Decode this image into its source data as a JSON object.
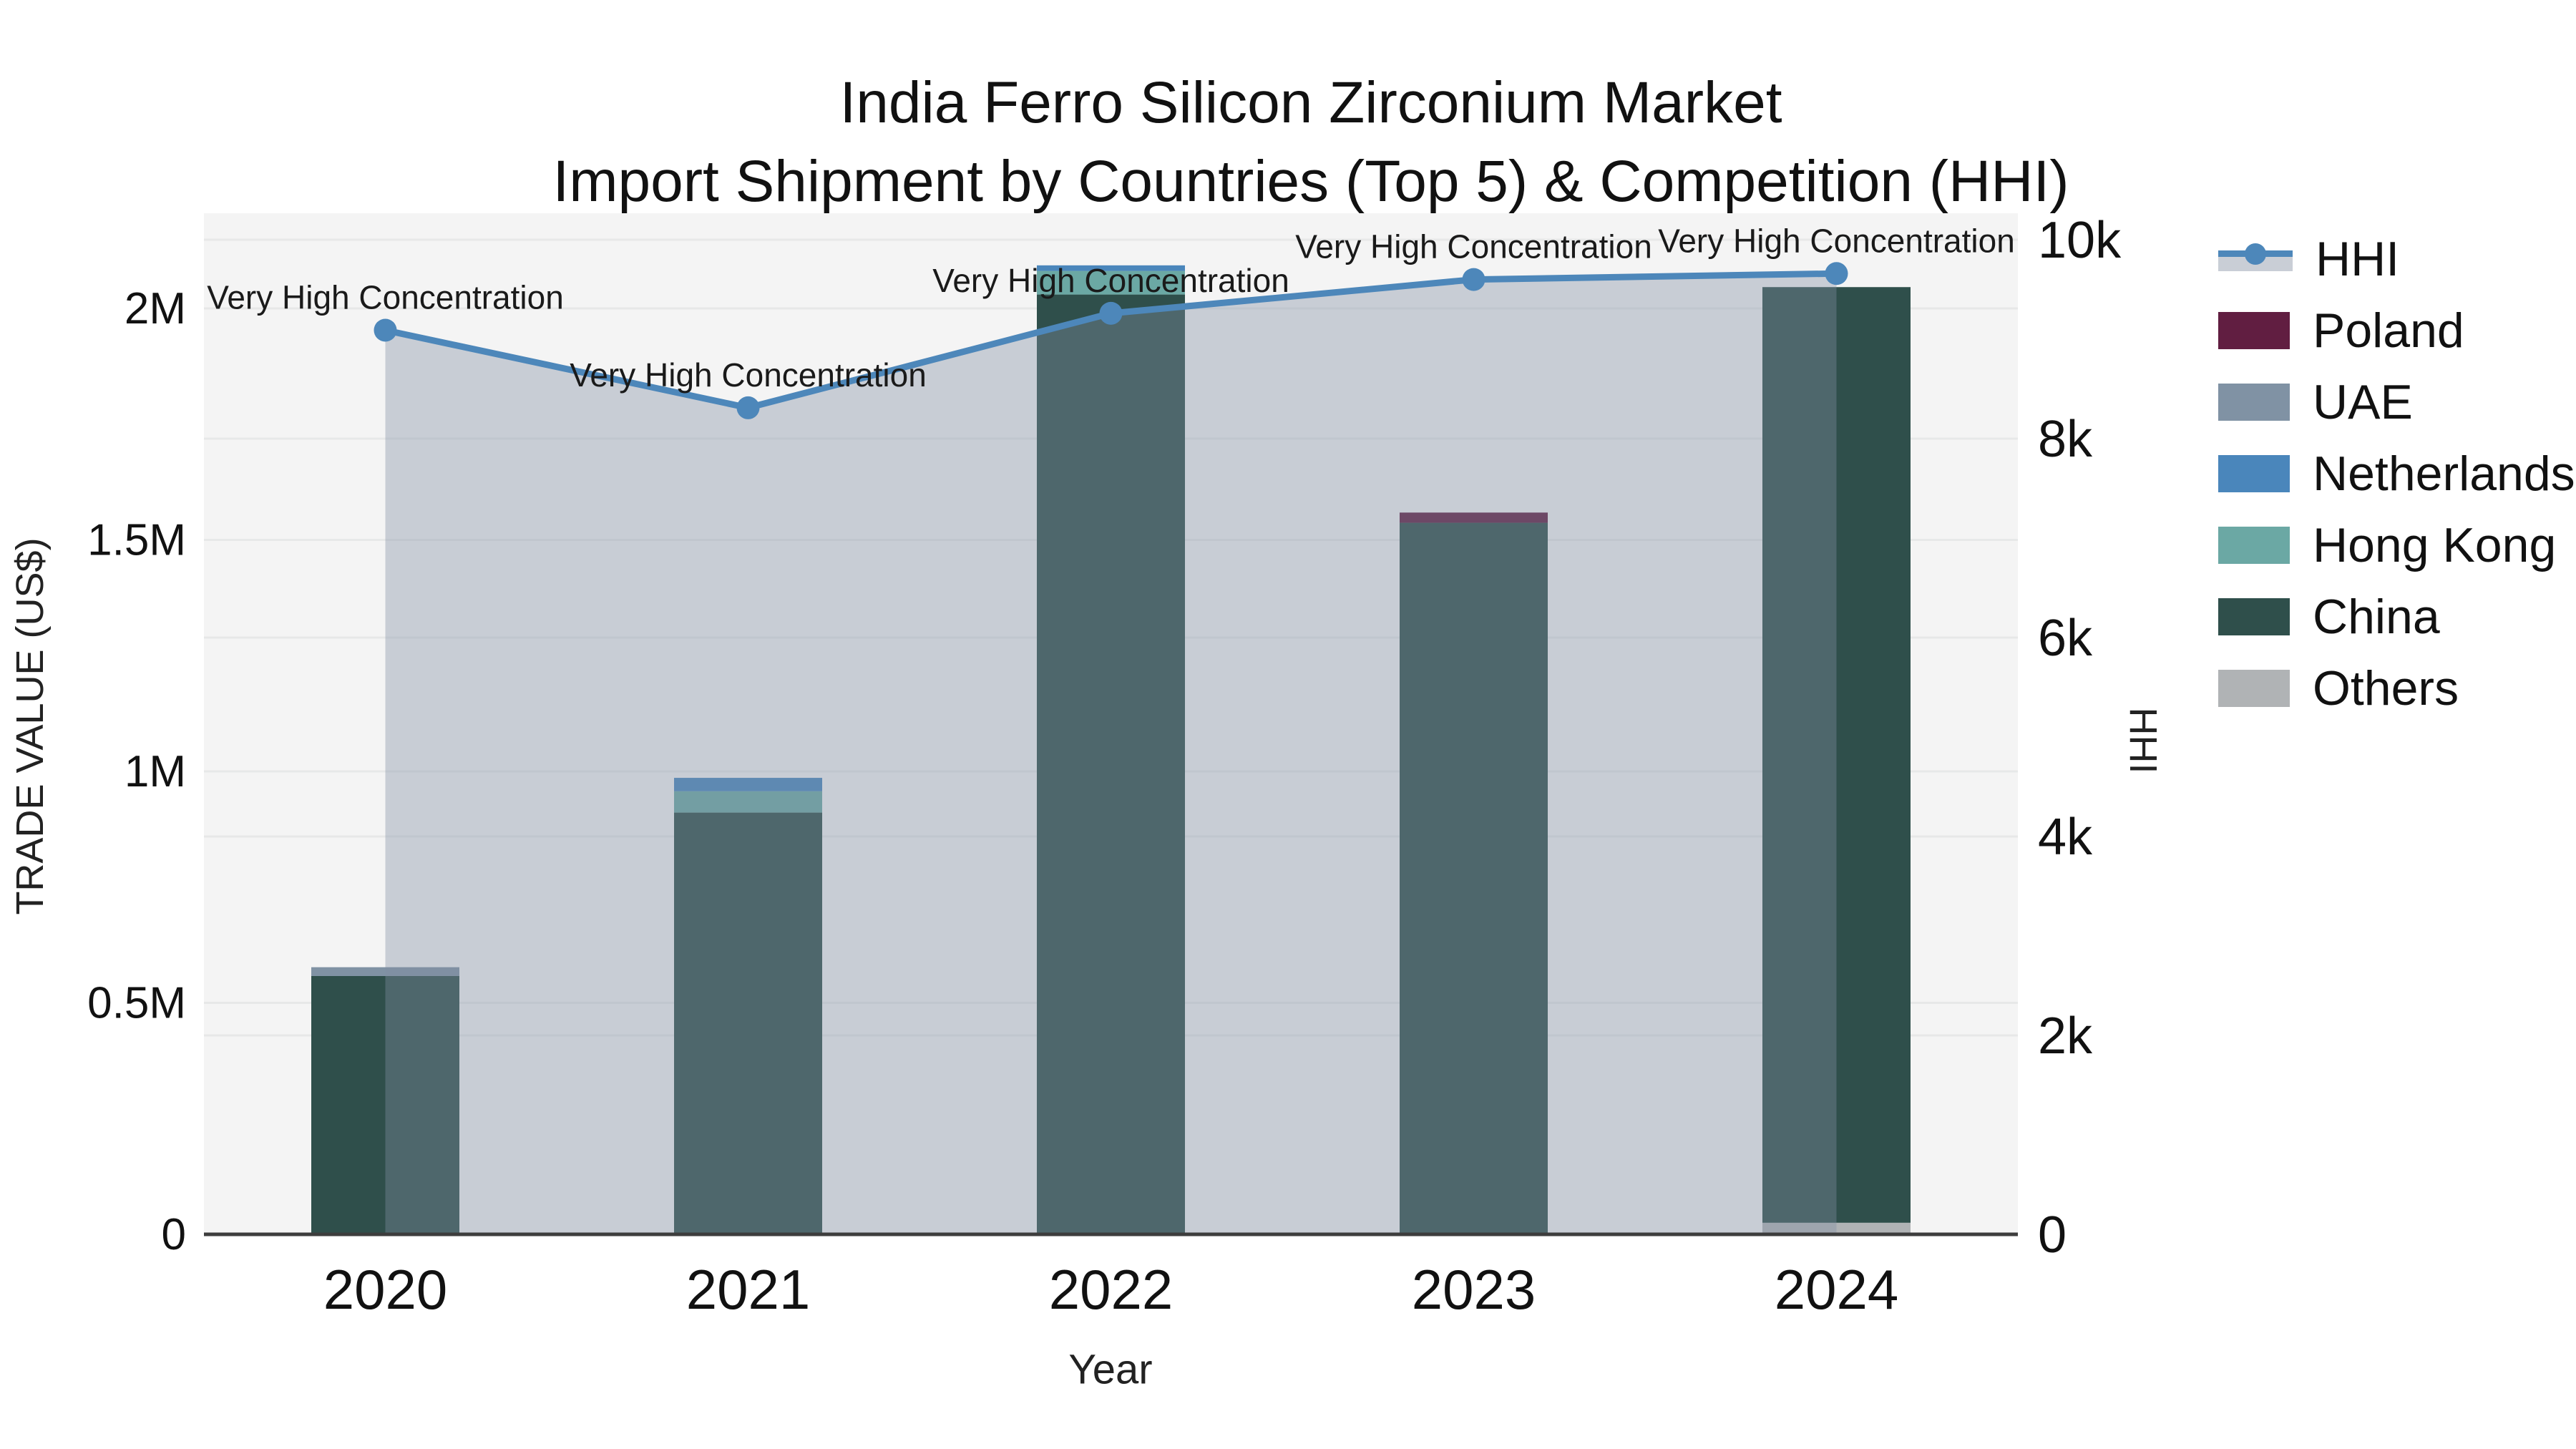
{
  "title": {
    "line1": "India Ferro Silicon Zirconium Market",
    "line2": "Import Shipment by Countries (Top 5) & Competition (HHI)"
  },
  "axes": {
    "left": {
      "title": "TRADE VALUE (US$)",
      "ticks": [
        {
          "value": 0,
          "label": "0"
        },
        {
          "value": 500000,
          "label": "0.5M"
        },
        {
          "value": 1000000,
          "label": "1M"
        },
        {
          "value": 1500000,
          "label": "1.5M"
        },
        {
          "value": 2000000,
          "label": "2M"
        }
      ]
    },
    "right": {
      "title": "HHI",
      "ticks": [
        {
          "value": 0,
          "label": "0"
        },
        {
          "value": 2000,
          "label": "2k"
        },
        {
          "value": 4000,
          "label": "4k"
        },
        {
          "value": 6000,
          "label": "6k"
        },
        {
          "value": 8000,
          "label": "8k"
        },
        {
          "value": 10000,
          "label": "10k"
        }
      ]
    },
    "x": {
      "title": "Year"
    }
  },
  "legend": {
    "items": [
      {
        "label": "HHI",
        "type": "line",
        "color": "#4d87ba"
      },
      {
        "label": "Poland",
        "type": "box",
        "color": "#611e41"
      },
      {
        "label": "UAE",
        "type": "box",
        "color": "#8092a4"
      },
      {
        "label": "Netherlands",
        "type": "box",
        "color": "#4a86bb"
      },
      {
        "label": "Hong Kong",
        "type": "box",
        "color": "#6ba8a4"
      },
      {
        "label": "China",
        "type": "box",
        "color": "#2f4f4b"
      },
      {
        "label": "Others",
        "type": "box",
        "color": "#b0b3b5"
      }
    ]
  },
  "chart_data": {
    "type": "bar+line",
    "title": "India Ferro Silicon Zirconium Market — Import Shipment by Countries (Top 5) & Competition (HHI)",
    "categories": [
      "2020",
      "2021",
      "2022",
      "2023",
      "2024"
    ],
    "xlabel": "Year",
    "ylabel_left": "TRADE VALUE (US$)",
    "ylabel_right": "HHI",
    "ylim_left": [
      0,
      2200000
    ],
    "ylim_right": [
      0,
      10270
    ],
    "grid": true,
    "legend_position": "right",
    "bar_stack_order_bottom_to_top": [
      "Others",
      "China",
      "Hong Kong",
      "Netherlands",
      "UAE",
      "Poland"
    ],
    "series": [
      {
        "name": "Others",
        "color": "#b0b3b5",
        "values": [
          0,
          0,
          0,
          0,
          25000
        ]
      },
      {
        "name": "China",
        "color": "#2f4f4b",
        "values": [
          558000,
          911000,
          2030000,
          1537000,
          2021000
        ]
      },
      {
        "name": "Hong Kong",
        "color": "#6ba8a4",
        "values": [
          0,
          46000,
          51000,
          0,
          0
        ]
      },
      {
        "name": "Netherlands",
        "color": "#4a86bb",
        "values": [
          0,
          29000,
          12000,
          0,
          0
        ]
      },
      {
        "name": "UAE",
        "color": "#8092a4",
        "values": [
          19000,
          0,
          0,
          0,
          0
        ]
      },
      {
        "name": "Poland",
        "color": "#611e41",
        "values": [
          0,
          0,
          0,
          22000,
          0
        ]
      }
    ],
    "bar_totals": [
      577000,
      986000,
      2093000,
      1559000,
      2046000
    ],
    "line_series": {
      "name": "HHI",
      "color": "#4d87ba",
      "area_fill": "rgba(130,143,164,0.38)",
      "values": [
        9090,
        8310,
        9260,
        9600,
        9660
      ]
    },
    "annotations": [
      "Very High Concentration",
      "Very High Concentration",
      "Very High Concentration",
      "Very High Concentration",
      "Very High Concentration"
    ]
  },
  "colors": {
    "plot_background": "#f4f4f4",
    "page_background": "#ffffff",
    "gridline": "rgba(70,80,90,0.07)",
    "axis_line": "#3d3d3d",
    "text": "#111111"
  }
}
